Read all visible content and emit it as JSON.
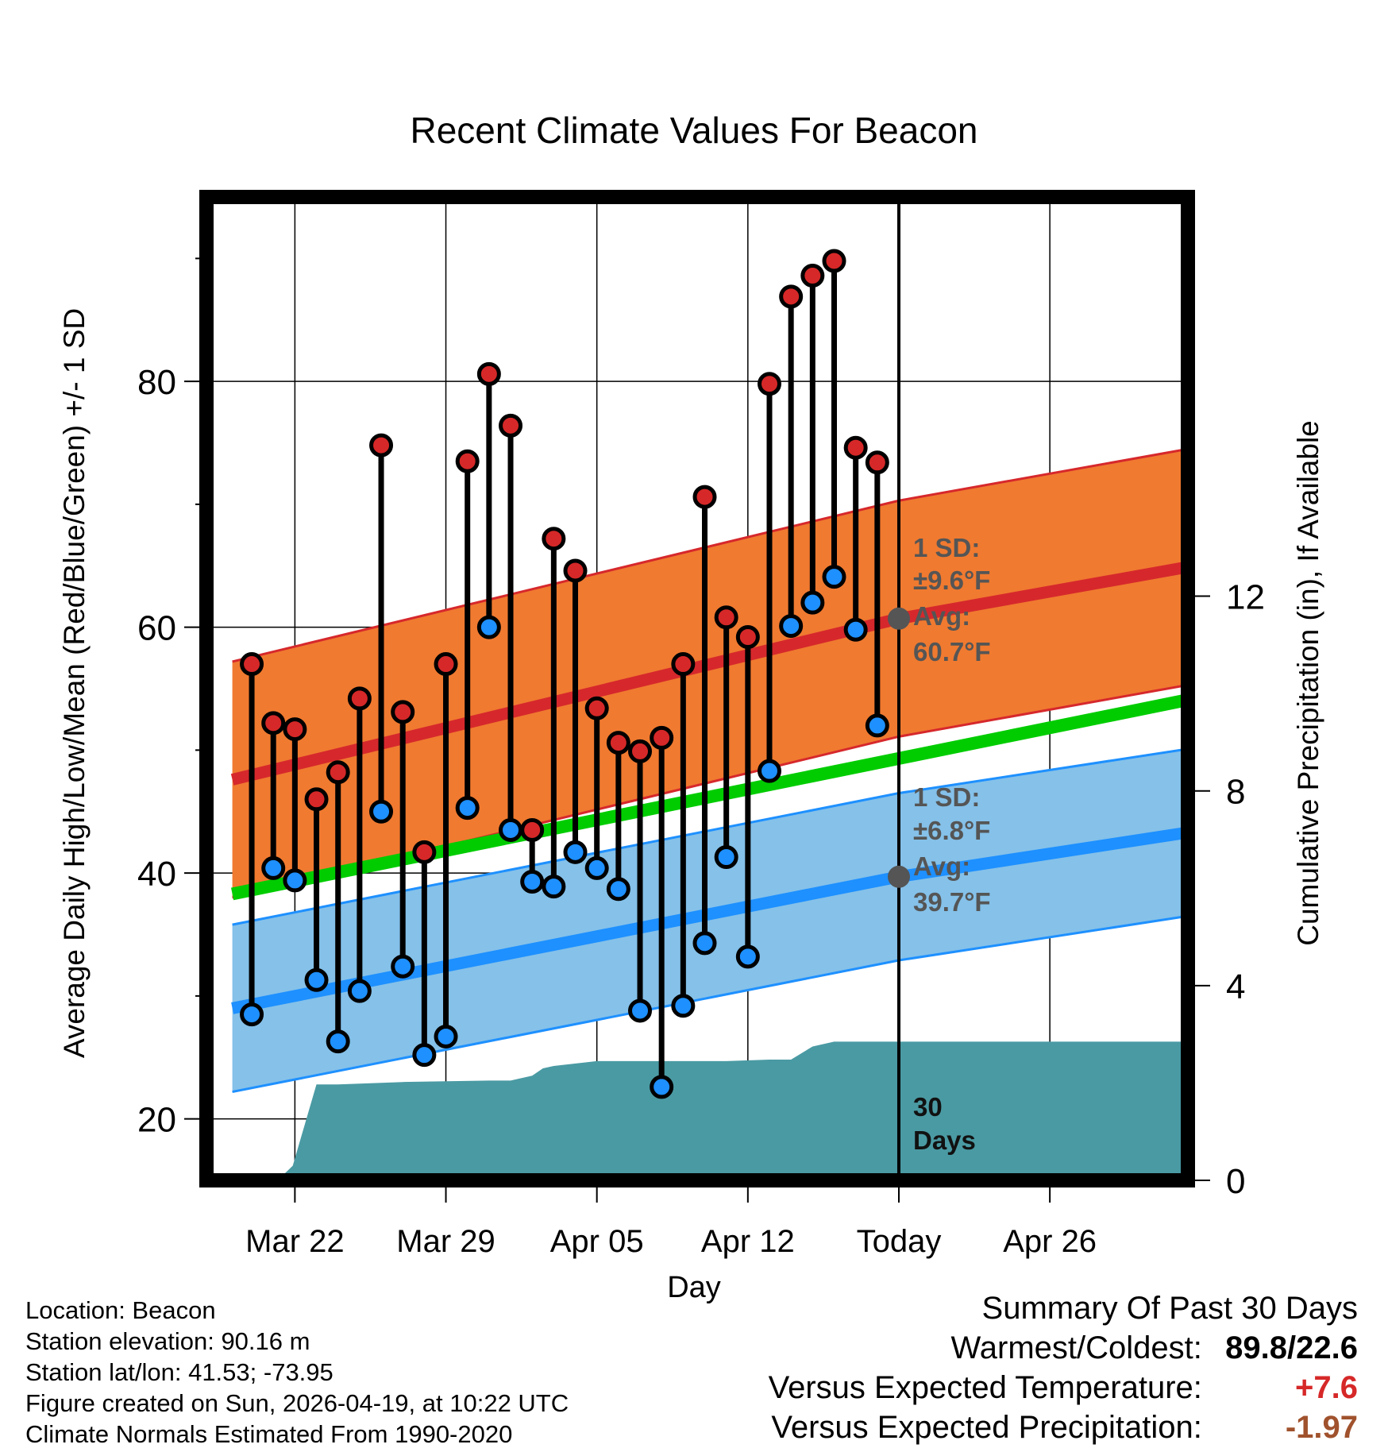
{
  "chart_data": {
    "type": "line",
    "title": "Recent Climate Values For Beacon",
    "xlabel": "Day",
    "ylabel": "Average Daily High/Low/Mean (Red/Blue/Green) +/- 1 SD",
    "y2label": "Cumulative Precipitation (in), If Available",
    "x_domain": [
      -4.1,
      41.4
    ],
    "ylim": [
      15,
      95
    ],
    "y2lim": [
      0,
      20.2
    ],
    "y_ticks": [
      20,
      40,
      60,
      80
    ],
    "y_minor_ticks": [
      30,
      50,
      70,
      90
    ],
    "y2_ticks": [
      0,
      4,
      8,
      12
    ],
    "x_ticks": [
      {
        "pos": 0,
        "label": "Mar 22"
      },
      {
        "pos": 7,
        "label": "Mar 29"
      },
      {
        "pos": 14,
        "label": "Apr 05"
      },
      {
        "pos": 21,
        "label": "Apr 12"
      },
      {
        "pos": 28,
        "label": "Today"
      },
      {
        "pos": 35,
        "label": "Apr 26"
      }
    ],
    "today_pos": 28,
    "normal_high": {
      "x": [
        -2.9,
        28,
        41.4
      ],
      "mean": [
        47.6,
        60.7,
        64.9
      ],
      "sd": 9.6
    },
    "normal_low": {
      "x": [
        -2.9,
        28,
        41.4
      ],
      "mean": [
        29.0,
        39.7,
        43.3
      ],
      "sd": 6.8
    },
    "normal_mean": {
      "x": [
        -2.9,
        41.4
      ],
      "values": [
        38.3,
        54.1
      ]
    },
    "daily": {
      "x": [
        -2,
        -1,
        0,
        1,
        2,
        3,
        4,
        5,
        6,
        7,
        8,
        9,
        10,
        11,
        12,
        13,
        14,
        15,
        16,
        17,
        18,
        19,
        20,
        21,
        22,
        23,
        24,
        25,
        26,
        27
      ],
      "high": [
        57.0,
        52.2,
        51.7,
        46.0,
        48.2,
        54.2,
        74.8,
        53.1,
        41.7,
        57.0,
        73.5,
        80.6,
        76.4,
        43.5,
        67.2,
        64.6,
        53.4,
        50.6,
        49.9,
        51.0,
        57.0,
        70.6,
        60.8,
        59.2,
        79.8,
        86.9,
        88.6,
        89.8,
        74.6,
        73.4
      ],
      "low": [
        28.5,
        40.4,
        39.4,
        31.3,
        26.3,
        30.4,
        45.0,
        32.4,
        25.2,
        26.7,
        45.3,
        60.0,
        43.5,
        39.3,
        38.9,
        41.7,
        40.4,
        38.7,
        28.8,
        22.6,
        29.2,
        34.3,
        41.3,
        33.2,
        48.3,
        60.1,
        62.0,
        64.1,
        59.8,
        52.0
      ]
    },
    "precip": {
      "x": [
        -2.9,
        -0.8,
        -0.1,
        1.0,
        2.0,
        5.0,
        9.0,
        10.0,
        11.0,
        11.5,
        12.0,
        14.0,
        15.0,
        20.0,
        22.0,
        23.0,
        24.0,
        25.0,
        41.4
      ],
      "values": [
        0.0,
        0.0,
        0.3,
        1.97,
        1.97,
        2.02,
        2.05,
        2.05,
        2.15,
        2.3,
        2.35,
        2.45,
        2.45,
        2.45,
        2.48,
        2.48,
        2.75,
        2.85,
        2.85
      ]
    },
    "annotations": {
      "high_sd": "1 SD:",
      "high_sd_value": "±9.6°F",
      "high_avg": "Avg:",
      "high_avg_value": "60.7°F",
      "low_sd": "1 SD:",
      "low_sd_value": "±6.8°F",
      "low_avg": "Avg:",
      "low_avg_value": "39.7°F",
      "days_number": "30",
      "days_word": "Days"
    },
    "colors": {
      "high_band": "#f07a30",
      "high_line": "#d6282c",
      "low_band": "#85c1e9",
      "low_line": "#1e90ff",
      "mean_line": "#00cc00",
      "precip": "#4a9aa3",
      "high_dot": "#d62828",
      "low_dot": "#1e90ff",
      "annotation": "#555555"
    }
  },
  "station_info": [
    "Location: Beacon",
    "Station elevation: 90.16 m",
    "Station lat/lon: 41.53; -73.95",
    "Figure created on Sun, 2026-04-19, at 10:22 UTC",
    "Climate Normals Estimated From 1990-2020"
  ],
  "summary": {
    "heading": "Summary Of Past 30 Days",
    "warm_cold_label": "Warmest/Coldest:",
    "warm_cold_value": "89.8/22.6",
    "temp_label": "Versus Expected Temperature:",
    "temp_value": "+7.6",
    "temp_color": "#d62828",
    "precip_label": "Versus Expected Precipitation:",
    "precip_value": "-1.97",
    "precip_color": "#a0522d"
  }
}
